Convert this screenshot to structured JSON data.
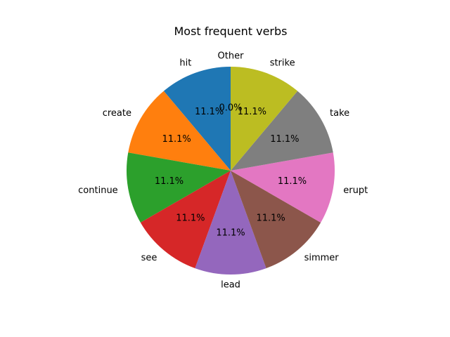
{
  "chart_data": {
    "type": "pie",
    "title": "Most frequent verbs",
    "labels": [
      "hit",
      "create",
      "continue",
      "see",
      "lead",
      "simmer",
      "erupt",
      "take",
      "strike",
      "Other"
    ],
    "values": [
      1,
      1,
      1,
      1,
      1,
      1,
      1,
      1,
      1,
      0
    ],
    "percent_labels": [
      "11.1%",
      "11.1%",
      "11.1%",
      "11.1%",
      "11.1%",
      "11.1%",
      "11.1%",
      "11.1%",
      "11.1%",
      "0.0%"
    ],
    "colors": [
      "#1f77b4",
      "#ff7f0e",
      "#2ca02c",
      "#d62728",
      "#9467bd",
      "#8c564b",
      "#e377c2",
      "#7f7f7f",
      "#bcbd22",
      "#17becf"
    ],
    "start_angle_deg": 90,
    "direction": "counterclockwise",
    "legend": "none"
  }
}
